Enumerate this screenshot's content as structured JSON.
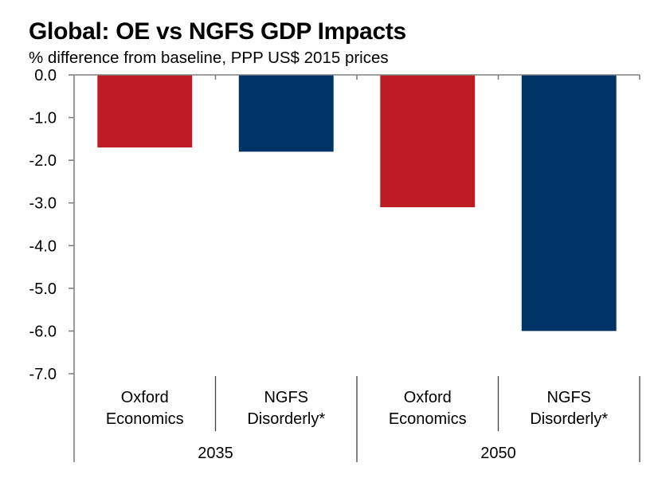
{
  "chart_data": {
    "type": "bar",
    "title": "Global: OE vs NGFS GDP Impacts",
    "subtitle": "% difference from baseline, PPP US$ 2015 prices",
    "xlabel": "",
    "ylabel": "",
    "ylim": [
      -7.0,
      0.0
    ],
    "yticks": [
      0.0,
      -1.0,
      -2.0,
      -3.0,
      -4.0,
      -5.0,
      -6.0,
      -7.0
    ],
    "ytick_labels": [
      "0.0",
      "-1.0",
      "-2.0",
      "-3.0",
      "-4.0",
      "-5.0",
      "-6.0",
      "-7.0"
    ],
    "grid": false,
    "legend": null,
    "groups": [
      {
        "label": "2035",
        "categories": [
          {
            "label_lines": [
              "Oxford",
              "Economics"
            ],
            "series": "Oxford Economics",
            "value": -1.7,
            "color": "#BE1B22"
          },
          {
            "label_lines": [
              "NGFS",
              "Disorderly*"
            ],
            "series": "NGFS Disorderly*",
            "value": -1.8,
            "color": "#003366"
          }
        ]
      },
      {
        "label": "2050",
        "categories": [
          {
            "label_lines": [
              "Oxford",
              "Economics"
            ],
            "series": "Oxford Economics",
            "value": -3.1,
            "color": "#BE1B22"
          },
          {
            "label_lines": [
              "NGFS",
              "Disorderly*"
            ],
            "series": "NGFS Disorderly*",
            "value": -6.0,
            "color": "#003366"
          }
        ]
      }
    ],
    "series_colors": {
      "Oxford Economics": "#BE1B22",
      "NGFS Disorderly*": "#003366"
    }
  }
}
